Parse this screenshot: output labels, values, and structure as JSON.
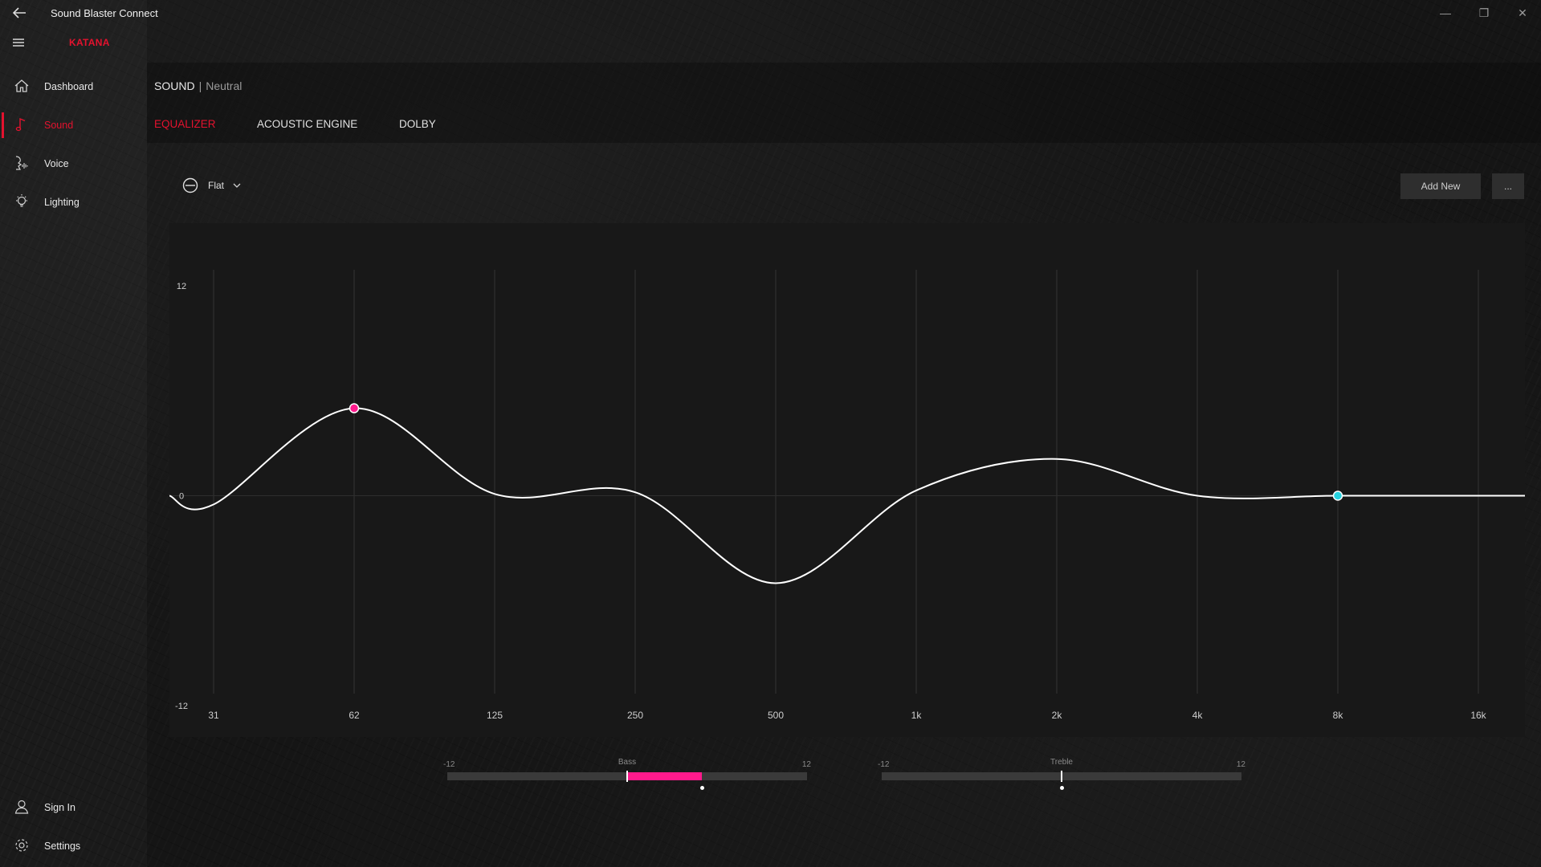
{
  "app": {
    "title": "Sound Blaster Connect",
    "device": "KATANA"
  },
  "window_controls": {
    "minimize": "—",
    "restore": "❐",
    "close": "✕"
  },
  "sidebar": {
    "items": [
      {
        "label": "Dashboard",
        "icon": "home-icon",
        "active": false
      },
      {
        "label": "Sound",
        "icon": "music-note-icon",
        "active": true
      },
      {
        "label": "Voice",
        "icon": "voice-icon",
        "active": false
      },
      {
        "label": "Lighting",
        "icon": "lightbulb-icon",
        "active": false
      }
    ],
    "bottom": [
      {
        "label": "Sign In",
        "icon": "user-icon"
      },
      {
        "label": "Settings",
        "icon": "gear-icon"
      }
    ]
  },
  "breadcrumb": {
    "root": "SOUND",
    "separator": "|",
    "preset": "Neutral"
  },
  "tabs": [
    {
      "label": "EQUALIZER",
      "active": true
    },
    {
      "label": "ACOUSTIC ENGINE",
      "active": false
    },
    {
      "label": "DOLBY",
      "active": false
    }
  ],
  "preset_select": {
    "value": "Flat"
  },
  "actions": {
    "add_new": "Add New",
    "more": "..."
  },
  "chart_data": {
    "type": "line",
    "x": [
      "31",
      "62",
      "125",
      "250",
      "500",
      "1k",
      "2k",
      "4k",
      "8k",
      "16k"
    ],
    "y_ticks": [
      "12",
      "0",
      "-12"
    ],
    "ylim": [
      -12,
      12
    ],
    "curve_points": [
      {
        "x": "31",
        "y": -0.5
      },
      {
        "x": "62",
        "y": 5.0
      },
      {
        "x": "125",
        "y": 0.1
      },
      {
        "x": "250",
        "y": 0.2
      },
      {
        "x": "500",
        "y": -5.0
      },
      {
        "x": "1k",
        "y": 0.3
      },
      {
        "x": "2k",
        "y": 2.1
      },
      {
        "x": "4k",
        "y": 0.0
      },
      {
        "x": "8k",
        "y": 0.0
      },
      {
        "x": "16k",
        "y": 0.0
      }
    ],
    "active_bands": [
      {
        "x": "62",
        "y": 5.0,
        "color": "#ff1a8c"
      },
      {
        "x": "8k",
        "y": 0.0,
        "color": "#27d3e0"
      }
    ],
    "grid": true
  },
  "tone_controls": {
    "bass": {
      "label": "Bass",
      "min": "-12",
      "max": "12",
      "value": 5
    },
    "treble": {
      "label": "Treble",
      "min": "-12",
      "max": "12",
      "value": 0
    }
  },
  "colors": {
    "accent": "#e4122e",
    "curve": "#ffffff",
    "bass_fill": "#ff1a8c",
    "highlight_band": "#27d3e0"
  }
}
